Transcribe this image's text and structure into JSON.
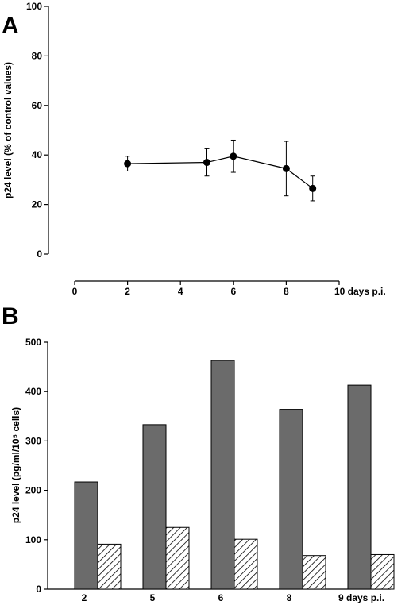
{
  "chart_data": [
    {
      "panel": "A",
      "type": "line",
      "ylabel": "p24 level (% of control values)",
      "xlabel": "days p.i.",
      "ylim": [
        0,
        100
      ],
      "xlim": [
        0,
        10
      ],
      "yticks": [
        "0",
        "20",
        "40",
        "60",
        "80",
        "100"
      ],
      "xticks": [
        "0",
        "2",
        "4",
        "6",
        "8",
        "10 days p.i."
      ],
      "grid": false,
      "series": [
        {
          "x": [
            2,
            5,
            6,
            8,
            9
          ],
          "y": [
            36.5,
            37,
            39.5,
            34.5,
            26.5
          ],
          "error": [
            3,
            5.5,
            6.5,
            11,
            5
          ]
        }
      ]
    },
    {
      "panel": "B",
      "type": "bar",
      "ylabel": "p24 level (pg/ml/10⁵ cells)",
      "xlabel": "days p.i.",
      "ylim": [
        0,
        500
      ],
      "yticks": [
        "0",
        "100",
        "200",
        "300",
        "400",
        "500"
      ],
      "categories": [
        "2",
        "5",
        "6",
        "8",
        "9 days p.i."
      ],
      "grid": false,
      "series": [
        {
          "style": "solid-gray",
          "values": [
            217,
            333,
            463,
            364,
            413
          ]
        },
        {
          "style": "hatched",
          "values": [
            91,
            125,
            101,
            68,
            70
          ]
        }
      ]
    }
  ],
  "colors": {
    "solid_bar": "#6b6b6b",
    "hatch": "#000000",
    "marker": "#000000"
  }
}
